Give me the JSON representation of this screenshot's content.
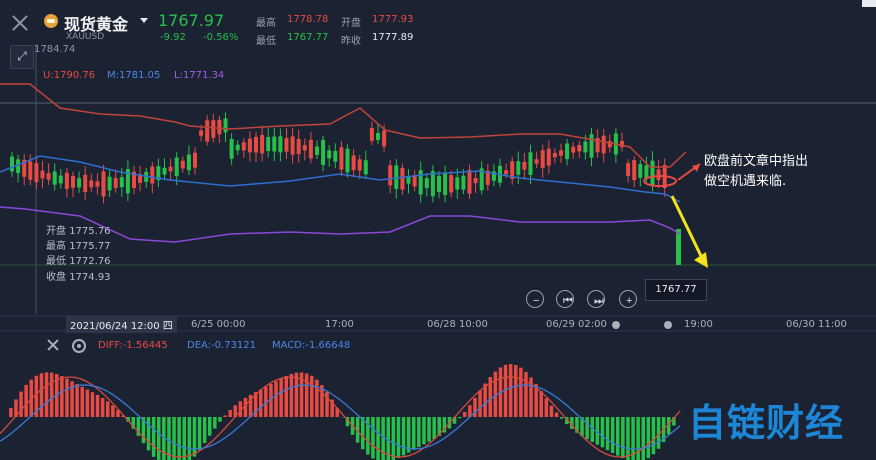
{
  "header": {
    "title": "现货黄金",
    "symbol": "XAUUSD",
    "last_price": "1767.97",
    "change": "-9.92",
    "change_pct": "-0.56%",
    "stats": [
      {
        "label": "最高",
        "value": "1778.78",
        "color": "#e94a43"
      },
      {
        "label": "开盘",
        "value": "1777.93",
        "color": "#e94a43"
      },
      {
        "label": "最低",
        "value": "1767.77",
        "color": "#27c04a"
      },
      {
        "label": "昨收",
        "value": "1777.89",
        "color": "#e8eaef"
      }
    ]
  },
  "chart": {
    "top_value": "1784.74",
    "bollinger": {
      "upper": "U:1790.76",
      "middle": "M:1781.05",
      "lower": "L:1771.34"
    },
    "ohlc": [
      {
        "label": "开盘",
        "value": "1775.76"
      },
      {
        "label": "最高",
        "value": "1775.77"
      },
      {
        "label": "最低",
        "value": "1772.76"
      },
      {
        "label": "收盘",
        "value": "1774.93"
      }
    ],
    "current_price_tag": "1767.77",
    "x_labels": {
      "highlighted": "2021/06/24 12:00 四",
      "ticks": [
        "6/25 00:00",
        "17:00",
        "06/28 10:00",
        "06/29 02:00",
        "19:00",
        "06/30 11:00"
      ]
    },
    "nav_buttons": [
      "−",
      "⏮",
      "⏭",
      "+"
    ],
    "annotation": [
      "欧盘前文章中指出",
      "做空机遇来临."
    ]
  },
  "macd": {
    "diff": "DIFF:-1.56445",
    "dea": "DEA:-0.73121",
    "macd": "MACD:-1.66648"
  },
  "watermark": "自链财经",
  "colors": {
    "background": "#1b2232",
    "up": "#27c04a",
    "down": "#e94a43",
    "upper_band": "#c0443c",
    "middle_band": "#2f6fd0",
    "lower_band": "#8a48d8"
  },
  "chart_data": {
    "type": "candlestick",
    "series": [
      {
        "name": "U",
        "value": 1790.76
      },
      {
        "name": "M",
        "value": 1781.05
      },
      {
        "name": "L",
        "value": 1771.34
      }
    ]
  }
}
